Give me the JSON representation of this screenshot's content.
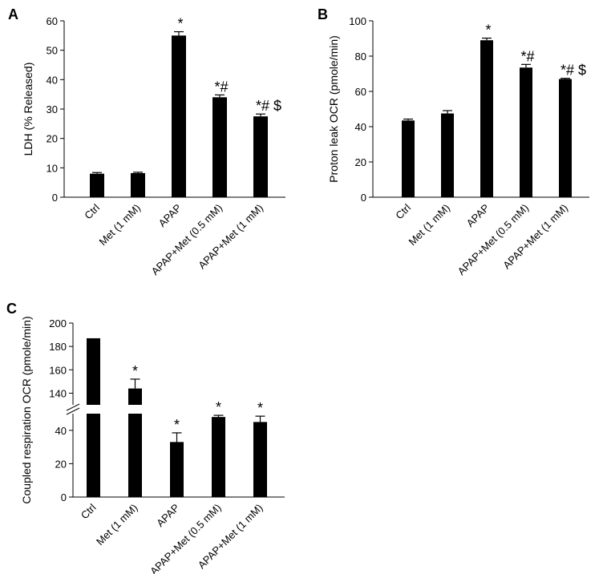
{
  "chart_data": [
    {
      "panel": "A",
      "type": "bar",
      "title": "",
      "xlabel": "",
      "ylabel": "LDH (% Released)",
      "ylim": [
        0,
        60
      ],
      "yticks": [
        0,
        10,
        20,
        30,
        40,
        50,
        60
      ],
      "categories": [
        "Ctrl",
        "Met (1 mM)",
        "APAP",
        "APAP+Met (0.5 mM)",
        "APAP+Met (1 mM)"
      ],
      "values": [
        8,
        8.2,
        55,
        34,
        27.5
      ],
      "errors": [
        0.4,
        0.3,
        1.3,
        0.8,
        0.8
      ],
      "annotations": [
        "",
        "",
        "*",
        "*#",
        "*# $"
      ]
    },
    {
      "panel": "B",
      "type": "bar",
      "title": "",
      "xlabel": "",
      "ylabel": "Proton leak OCR (pmole/min)",
      "ylim": [
        0,
        100
      ],
      "yticks": [
        0,
        20,
        40,
        60,
        80,
        100
      ],
      "categories": [
        "Ctrl",
        "Met (1 mM)",
        "APAP",
        "APAP+Met (0.5 mM)",
        "APAP+Met (1 mM)"
      ],
      "values": [
        43.5,
        47.5,
        89,
        73.5,
        67
      ],
      "errors": [
        0.8,
        1.6,
        1.2,
        1.8,
        0.4
      ],
      "annotations": [
        "",
        "",
        "*",
        "*#",
        "*# $"
      ]
    },
    {
      "panel": "C",
      "type": "bar",
      "title": "",
      "xlabel": "",
      "ylabel": "Coupled respiration OCR (pmole/min)",
      "axis_break": true,
      "lower_ylim": [
        0,
        50
      ],
      "lower_yticks": [
        0,
        20,
        40
      ],
      "upper_ylim": [
        130,
        200
      ],
      "upper_yticks": [
        140,
        160,
        180,
        200
      ],
      "categories": [
        "Ctrl",
        "Met (1 mM)",
        "APAP",
        "APAP+Met (0.5 mM)",
        "APAP+Met (1 mM)"
      ],
      "values": [
        187,
        144,
        33,
        48,
        45
      ],
      "errors": [
        0,
        8,
        5.5,
        1,
        3.5
      ],
      "annotations": [
        "",
        "*",
        "*",
        "*",
        "*"
      ]
    }
  ]
}
